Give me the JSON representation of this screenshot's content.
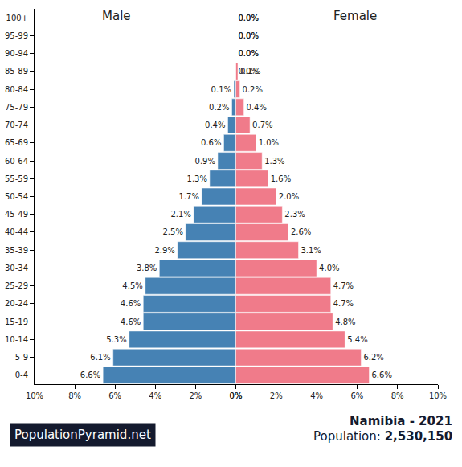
{
  "chart_data": [
    {
      "type": "bar",
      "orientation": "horizontal",
      "title": "Male",
      "categories": [
        "0-4",
        "5-9",
        "10-14",
        "15-19",
        "20-24",
        "25-29",
        "30-34",
        "35-39",
        "40-44",
        "45-49",
        "50-54",
        "55-59",
        "60-64",
        "65-69",
        "70-74",
        "75-79",
        "80-84",
        "85-89",
        "90-94",
        "95-99",
        "100+"
      ],
      "values": [
        6.6,
        6.1,
        5.3,
        4.6,
        4.6,
        4.5,
        3.8,
        2.9,
        2.5,
        2.1,
        1.7,
        1.3,
        0.9,
        0.6,
        0.4,
        0.2,
        0.1,
        0.0,
        0.0,
        0.0,
        0.0
      ],
      "value_labels": [
        "6.6%",
        "6.1%",
        "5.3%",
        "4.6%",
        "4.6%",
        "4.5%",
        "3.8%",
        "2.9%",
        "2.5%",
        "2.1%",
        "1.7%",
        "1.3%",
        "0.9%",
        "0.6%",
        "0.4%",
        "0.2%",
        "0.1%",
        "0.0%",
        "0.0%",
        "0.0%",
        "0.0%"
      ],
      "color": "#4682b4",
      "xlim": [
        10,
        0
      ],
      "xticks": [
        {
          "value": 10,
          "label": "10%"
        },
        {
          "value": 8,
          "label": "8%"
        },
        {
          "value": 6,
          "label": "6%"
        },
        {
          "value": 4,
          "label": "4%"
        },
        {
          "value": 2,
          "label": "2%"
        },
        {
          "value": 0,
          "label": "0%"
        }
      ],
      "data_labels": true,
      "grid": false
    },
    {
      "type": "bar",
      "orientation": "horizontal",
      "title": "Female",
      "categories": [
        "0-4",
        "5-9",
        "10-14",
        "15-19",
        "20-24",
        "25-29",
        "30-34",
        "35-39",
        "40-44",
        "45-49",
        "50-54",
        "55-59",
        "60-64",
        "65-69",
        "70-74",
        "75-79",
        "80-84",
        "85-89",
        "90-94",
        "95-99",
        "100+"
      ],
      "values": [
        6.6,
        6.2,
        5.4,
        4.8,
        4.7,
        4.7,
        4.0,
        3.1,
        2.6,
        2.3,
        2.0,
        1.6,
        1.3,
        1.0,
        0.7,
        0.4,
        0.2,
        0.1,
        0.0,
        0.0,
        0.0
      ],
      "value_labels": [
        "6.6%",
        "6.2%",
        "5.4%",
        "4.8%",
        "4.7%",
        "4.7%",
        "4.0%",
        "3.1%",
        "2.6%",
        "2.3%",
        "2.0%",
        "1.6%",
        "1.3%",
        "1.0%",
        "0.7%",
        "0.4%",
        "0.2%",
        "0.1%",
        "0.0%",
        "0.0%",
        "0.0%"
      ],
      "color": "#f07b8a",
      "xlim": [
        0,
        10
      ],
      "xticks": [
        {
          "value": 0,
          "label": "0%"
        },
        {
          "value": 2,
          "label": "2%"
        },
        {
          "value": 4,
          "label": "4%"
        },
        {
          "value": 6,
          "label": "6%"
        },
        {
          "value": 8,
          "label": "8%"
        },
        {
          "value": 10,
          "label": "10%"
        }
      ],
      "data_labels": true,
      "grid": false,
      "tick_labels": "x"
    }
  ],
  "footer": {
    "source": "PopulationPyramid.net",
    "title": "Namibia - 2021",
    "population_label": "Population:",
    "population": "2,530,150"
  }
}
